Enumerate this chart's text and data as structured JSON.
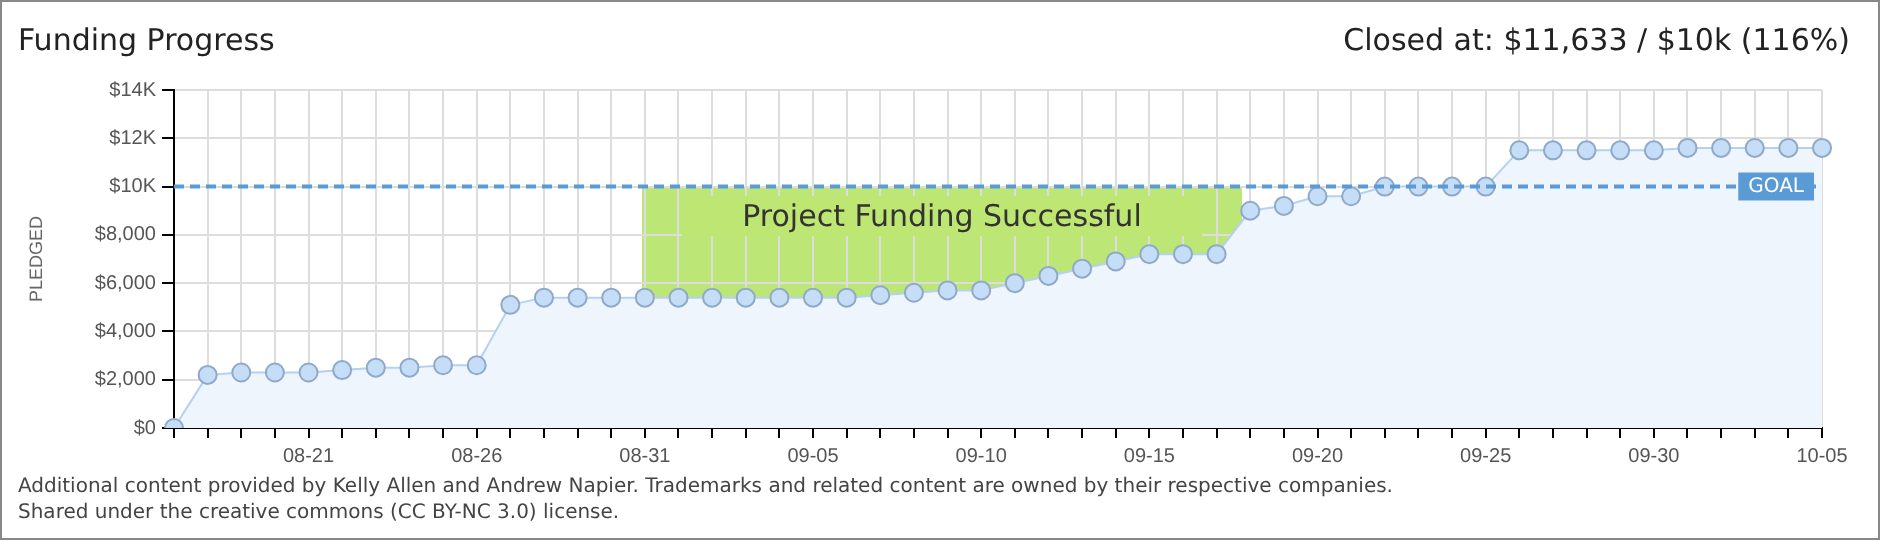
{
  "chart_data": {
    "type": "area",
    "title": "Funding Progress",
    "ylabel": "PLEDGED",
    "categories": [
      null,
      null,
      null,
      null,
      "08-21",
      null,
      null,
      null,
      null,
      "08-26",
      null,
      null,
      null,
      null,
      "08-31",
      null,
      null,
      null,
      null,
      "09-05",
      null,
      null,
      null,
      null,
      "09-10",
      null,
      null,
      null,
      null,
      "09-15",
      null,
      null,
      null,
      null,
      "09-20",
      null,
      null,
      null,
      null,
      "09-25",
      null,
      null,
      null,
      null,
      "09-30",
      null,
      null,
      null,
      null,
      "10-05"
    ],
    "series": [
      {
        "color": "#c6ddf7",
        "values": [
          0,
          2200,
          2300,
          2300,
          2300,
          2400,
          2500,
          2500,
          2600,
          2600,
          5100,
          5400,
          5400,
          5400,
          5400,
          5400,
          5400,
          5400,
          5400,
          5400,
          5400,
          5500,
          5600,
          5700,
          5700,
          6000,
          6300,
          6600,
          6900,
          7200,
          7200,
          7200,
          9000,
          9200,
          9600,
          9600,
          10000,
          10000,
          10000,
          10000,
          11500,
          11500,
          11500,
          11500,
          11500,
          11600,
          11600,
          11600,
          11600,
          11600
        ]
      }
    ],
    "ylim": [
      0,
      14000
    ],
    "yticks": [
      {
        "value": 0,
        "label": "$0"
      },
      {
        "value": 2000,
        "label": "$2,000"
      },
      {
        "value": 4000,
        "label": "$4,000"
      },
      {
        "value": 6000,
        "label": "$6,000"
      },
      {
        "value": 8000,
        "label": "$8,000"
      },
      {
        "value": 10000,
        "label": "$10K"
      },
      {
        "value": 12000,
        "label": "$12K"
      },
      {
        "value": 14000,
        "label": "$14K"
      }
    ],
    "ref_lines": [
      {
        "axis": "y",
        "value": 10000,
        "label": "GOAL",
        "color": "#5b9bd5",
        "line_style": "dashed"
      }
    ],
    "annotations": [
      "Closed at: $11,633 / $10k (116%)",
      "Project Funding Successful",
      "Additional content provided by Kelly Allen and Andrew Napier. Trademarks and related content are owned by their respective companies.",
      "Shared under the creative commons (CC BY-NC 3.0) license."
    ],
    "grid": true,
    "marker": "circle",
    "line_style": "solid",
    "legend": false
  }
}
